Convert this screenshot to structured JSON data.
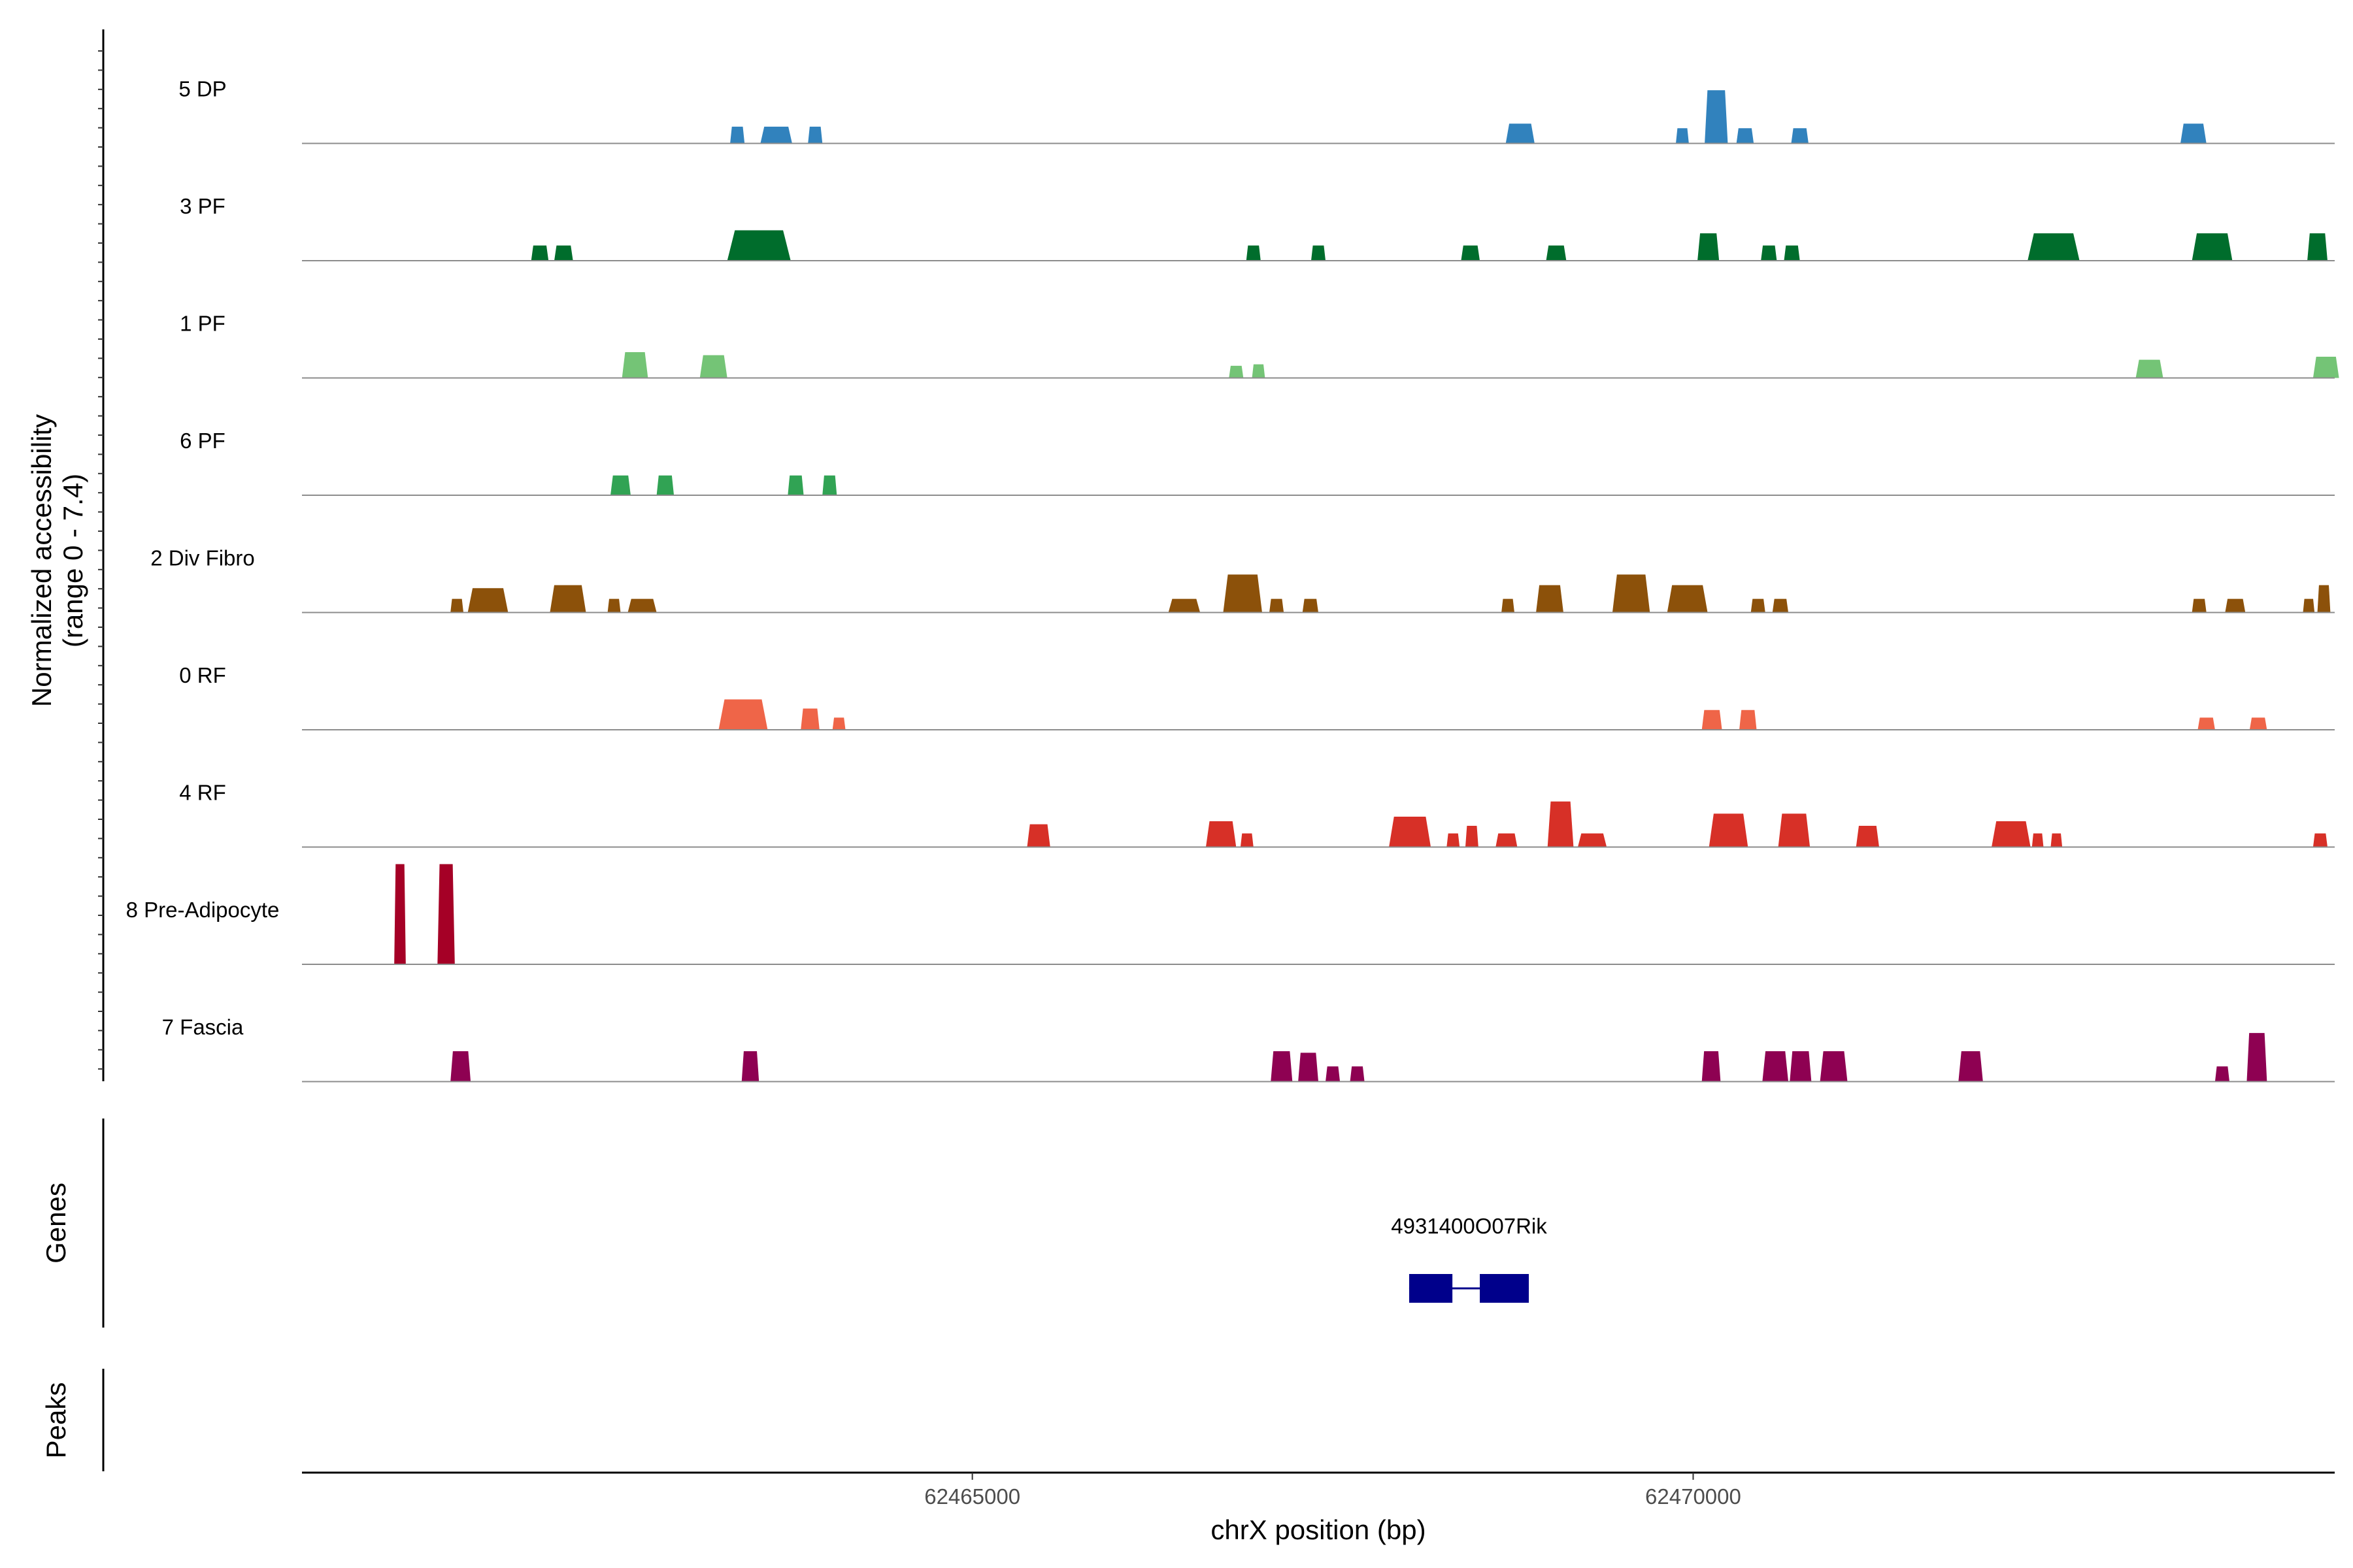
{
  "chart_data": {
    "type": "area",
    "chromosome": "chrX",
    "xlim": [
      62460350,
      62474450
    ],
    "xlabel": "chrX position (bp)",
    "x_ticks": [
      62465000,
      62470000
    ],
    "x_tick_labels": [
      "62465000",
      "62470000"
    ],
    "coverage_ylabel": "Normalized accessibility\n(range 0 - 7.4)",
    "coverage_ylim": [
      0,
      7.4
    ],
    "genes_label": "Genes",
    "peaks_label": "Peaks",
    "tracks": [
      {
        "name": "5 DP",
        "color": "#3182bd",
        "peaks": [
          {
            "start": 62463320,
            "end": 62463420,
            "height": 1.1
          },
          {
            "start": 62463530,
            "end": 62463750,
            "height": 1.1
          },
          {
            "start": 62463860,
            "end": 62463960,
            "height": 1.1
          },
          {
            "start": 62468700,
            "end": 62468900,
            "height": 1.3
          },
          {
            "start": 62469880,
            "end": 62469970,
            "height": 1.0
          },
          {
            "start": 62470080,
            "end": 62470240,
            "height": 3.5
          },
          {
            "start": 62470300,
            "end": 62470420,
            "height": 1.0
          },
          {
            "start": 62470680,
            "end": 62470800,
            "height": 1.0
          },
          {
            "start": 62473380,
            "end": 62473560,
            "height": 1.3
          }
        ]
      },
      {
        "name": "3 PF",
        "color": "#006d2c",
        "peaks": [
          {
            "start": 62461940,
            "end": 62462060,
            "height": 1.0
          },
          {
            "start": 62462100,
            "end": 62462230,
            "height": 1.0
          },
          {
            "start": 62463300,
            "end": 62463740,
            "height": 2.0
          },
          {
            "start": 62466900,
            "end": 62467000,
            "height": 1.0
          },
          {
            "start": 62467350,
            "end": 62467450,
            "height": 1.0
          },
          {
            "start": 62468390,
            "end": 62468520,
            "height": 1.0
          },
          {
            "start": 62468980,
            "end": 62469120,
            "height": 1.0
          },
          {
            "start": 62470030,
            "end": 62470180,
            "height": 1.8
          },
          {
            "start": 62470470,
            "end": 62470580,
            "height": 1.0
          },
          {
            "start": 62470630,
            "end": 62470740,
            "height": 1.0
          },
          {
            "start": 62472320,
            "end": 62472680,
            "height": 1.8
          },
          {
            "start": 62473460,
            "end": 62473740,
            "height": 1.8
          },
          {
            "start": 62474260,
            "end": 62474400,
            "height": 1.8
          }
        ]
      },
      {
        "name": "1 PF",
        "color": "#74c476",
        "peaks": [
          {
            "start": 62462570,
            "end": 62462750,
            "height": 1.7
          },
          {
            "start": 62463110,
            "end": 62463300,
            "height": 1.5
          },
          {
            "start": 62466780,
            "end": 62466880,
            "height": 0.8
          },
          {
            "start": 62466940,
            "end": 62467030,
            "height": 0.9
          },
          {
            "start": 62473070,
            "end": 62473260,
            "height": 1.2
          },
          {
            "start": 62474300,
            "end": 62474480,
            "height": 1.4
          }
        ]
      },
      {
        "name": "6 PF",
        "color": "#31a354",
        "peaks": [
          {
            "start": 62462490,
            "end": 62462630,
            "height": 1.3
          },
          {
            "start": 62462810,
            "end": 62462930,
            "height": 1.3
          },
          {
            "start": 62463720,
            "end": 62463830,
            "height": 1.3
          },
          {
            "start": 62463960,
            "end": 62464060,
            "height": 1.3
          }
        ]
      },
      {
        "name": "2 Div Fibro",
        "color": "#8c510a",
        "peaks": [
          {
            "start": 62461380,
            "end": 62461470,
            "height": 0.9
          },
          {
            "start": 62461500,
            "end": 62461780,
            "height": 1.6
          },
          {
            "start": 62462070,
            "end": 62462320,
            "height": 1.8
          },
          {
            "start": 62462470,
            "end": 62462560,
            "height": 0.9
          },
          {
            "start": 62462610,
            "end": 62462810,
            "height": 0.9
          },
          {
            "start": 62466360,
            "end": 62466580,
            "height": 0.9
          },
          {
            "start": 62466740,
            "end": 62467010,
            "height": 2.5
          },
          {
            "start": 62467060,
            "end": 62467160,
            "height": 0.9
          },
          {
            "start": 62467290,
            "end": 62467400,
            "height": 0.9
          },
          {
            "start": 62468670,
            "end": 62468760,
            "height": 0.9
          },
          {
            "start": 62468910,
            "end": 62469100,
            "height": 1.8
          },
          {
            "start": 62469440,
            "end": 62469700,
            "height": 2.5
          },
          {
            "start": 62469820,
            "end": 62470100,
            "height": 1.8
          },
          {
            "start": 62470400,
            "end": 62470500,
            "height": 0.9
          },
          {
            "start": 62470550,
            "end": 62470660,
            "height": 0.9
          },
          {
            "start": 62473460,
            "end": 62473560,
            "height": 0.9
          },
          {
            "start": 62473690,
            "end": 62473830,
            "height": 0.9
          },
          {
            "start": 62474230,
            "end": 62474310,
            "height": 0.9
          },
          {
            "start": 62474330,
            "end": 62474420,
            "height": 1.8
          }
        ]
      },
      {
        "name": "0 RF",
        "color": "#ef6548",
        "peaks": [
          {
            "start": 62463240,
            "end": 62463580,
            "height": 2.0
          },
          {
            "start": 62463810,
            "end": 62463940,
            "height": 1.4
          },
          {
            "start": 62464030,
            "end": 62464120,
            "height": 0.8
          },
          {
            "start": 62470060,
            "end": 62470200,
            "height": 1.3
          },
          {
            "start": 62470320,
            "end": 62470440,
            "height": 1.3
          },
          {
            "start": 62473500,
            "end": 62473620,
            "height": 0.8
          },
          {
            "start": 62473860,
            "end": 62473980,
            "height": 0.8
          }
        ]
      },
      {
        "name": "4 RF",
        "color": "#d73027",
        "peaks": [
          {
            "start": 62465380,
            "end": 62465540,
            "height": 1.5
          },
          {
            "start": 62466620,
            "end": 62466830,
            "height": 1.7
          },
          {
            "start": 62466860,
            "end": 62466950,
            "height": 0.9
          },
          {
            "start": 62467890,
            "end": 62468180,
            "height": 2.0
          },
          {
            "start": 62468290,
            "end": 62468380,
            "height": 0.9
          },
          {
            "start": 62468420,
            "end": 62468510,
            "height": 1.4
          },
          {
            "start": 62468630,
            "end": 62468780,
            "height": 0.9
          },
          {
            "start": 62468990,
            "end": 62469170,
            "height": 3.0
          },
          {
            "start": 62469200,
            "end": 62469400,
            "height": 0.9
          },
          {
            "start": 62470110,
            "end": 62470380,
            "height": 2.2
          },
          {
            "start": 62470590,
            "end": 62470810,
            "height": 2.2
          },
          {
            "start": 62471130,
            "end": 62471290,
            "height": 1.4
          },
          {
            "start": 62472070,
            "end": 62472340,
            "height": 1.7
          },
          {
            "start": 62472350,
            "end": 62472430,
            "height": 0.9
          },
          {
            "start": 62472480,
            "end": 62472560,
            "height": 0.9
          },
          {
            "start": 62474300,
            "end": 62474400,
            "height": 0.9
          }
        ]
      },
      {
        "name": "8 Pre-Adipocyte",
        "color": "#a50026",
        "peaks": [
          {
            "start": 62460990,
            "end": 62461070,
            "height": 6.6
          },
          {
            "start": 62461290,
            "end": 62461410,
            "height": 6.6
          }
        ]
      },
      {
        "name": "7 Fascia",
        "color": "#8e0152",
        "peaks": [
          {
            "start": 62461380,
            "end": 62461520,
            "height": 2.0
          },
          {
            "start": 62463400,
            "end": 62463520,
            "height": 2.0
          },
          {
            "start": 62467070,
            "end": 62467220,
            "height": 2.0
          },
          {
            "start": 62467260,
            "end": 62467400,
            "height": 1.9
          },
          {
            "start": 62467450,
            "end": 62467550,
            "height": 1.0
          },
          {
            "start": 62467620,
            "end": 62467720,
            "height": 1.0
          },
          {
            "start": 62470060,
            "end": 62470190,
            "height": 2.0
          },
          {
            "start": 62470480,
            "end": 62470660,
            "height": 2.0
          },
          {
            "start": 62470670,
            "end": 62470820,
            "height": 2.0
          },
          {
            "start": 62470880,
            "end": 62471070,
            "height": 2.0
          },
          {
            "start": 62471840,
            "end": 62472010,
            "height": 2.0
          },
          {
            "start": 62473620,
            "end": 62473720,
            "height": 1.0
          },
          {
            "start": 62473840,
            "end": 62473980,
            "height": 3.2
          }
        ]
      }
    ],
    "genes": [
      {
        "name": "4931400O07Rik",
        "start": 62468030,
        "end": 62468860,
        "exons": [
          [
            62468030,
            62468330
          ],
          [
            62468520,
            62468860
          ]
        ],
        "color": "#00008b"
      }
    ]
  }
}
